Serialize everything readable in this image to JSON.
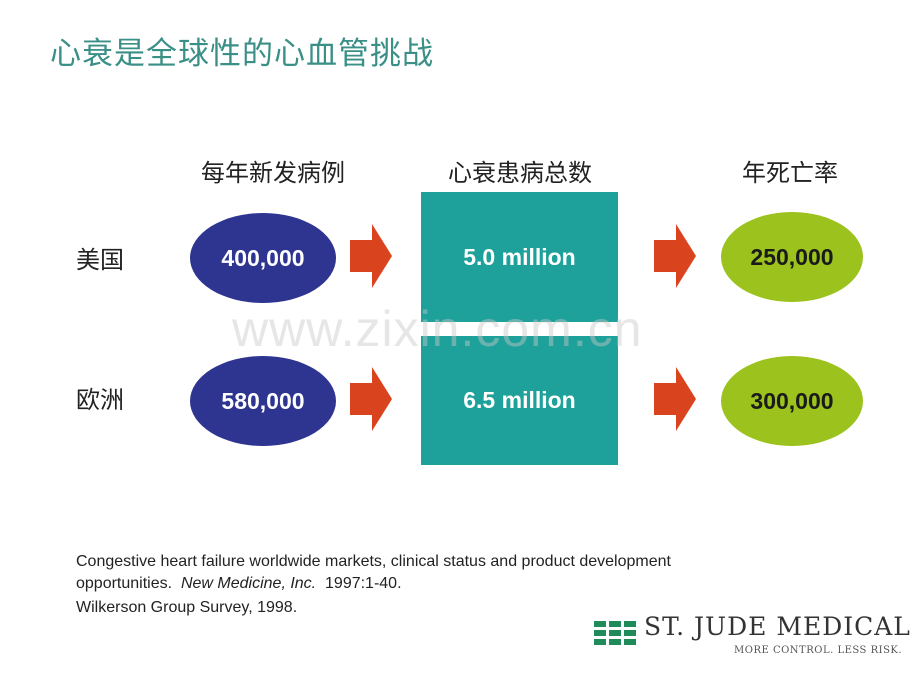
{
  "title": "心衰是全球性的心血管挑战",
  "columns": {
    "new_cases": "每年新发病例",
    "total_cases": "心衰患病总数",
    "annual_deaths": "年死亡率"
  },
  "rows": [
    {
      "region": "美国",
      "new_cases": "400,000",
      "total": "5.0 million",
      "deaths": "250,000"
    },
    {
      "region": "欧洲",
      "new_cases": "580,000",
      "total": "6.5 million",
      "deaths": "300,000"
    }
  ],
  "watermark": "www.zixin.com.cn",
  "references": {
    "line1": "Congestive heart failure worldwide markets, clinical status and product development",
    "line2_prefix": "opportunities.",
    "line2_journal": "New Medicine, Inc.",
    "line2_suffix": "1997:1-40.",
    "line3": "Wilkerson Group Survey, 1998."
  },
  "logo": {
    "name": "ST. JUDE MEDICAL",
    "tagline": "MORE CONTROL. LESS RISK."
  },
  "colors": {
    "title": "#3a8f86",
    "ellipse_blue": "#2e3590",
    "box_teal": "#1fa19b",
    "ellipse_green": "#9cc21e",
    "arrow": "#d9441e",
    "logo_green": "#1f8a5a"
  }
}
